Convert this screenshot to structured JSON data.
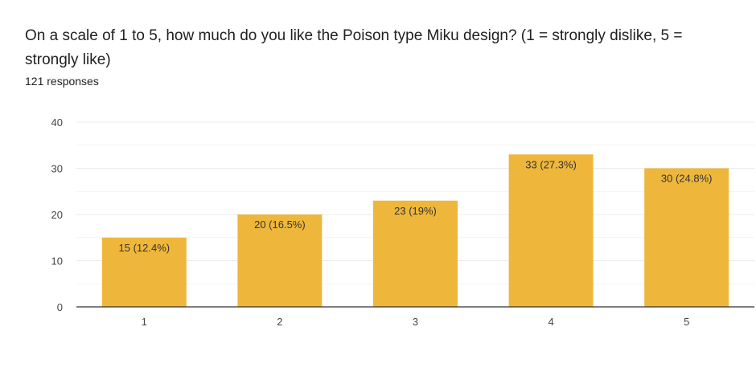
{
  "question": {
    "title": "On a scale of 1 to 5, how much do you like the Poison type Miku design? (1 = strongly dislike, 5 = strongly like)",
    "response_count": "121 responses"
  },
  "colors": {
    "bar": "#EEB73B",
    "grid": "#EBEBEB",
    "axis": "#333333"
  },
  "chart_data": {
    "type": "bar",
    "categories": [
      "1",
      "2",
      "3",
      "4",
      "5"
    ],
    "values": [
      15,
      20,
      23,
      33,
      30
    ],
    "data_labels": [
      "15 (12.4%)",
      "20 (16.5%)",
      "23 (19%)",
      "33 (27.3%)",
      "30 (24.8%)"
    ],
    "yticks": [
      "0",
      "10",
      "20",
      "30",
      "40"
    ],
    "ylim": [
      0,
      40
    ],
    "grid": true,
    "legend": "none"
  }
}
